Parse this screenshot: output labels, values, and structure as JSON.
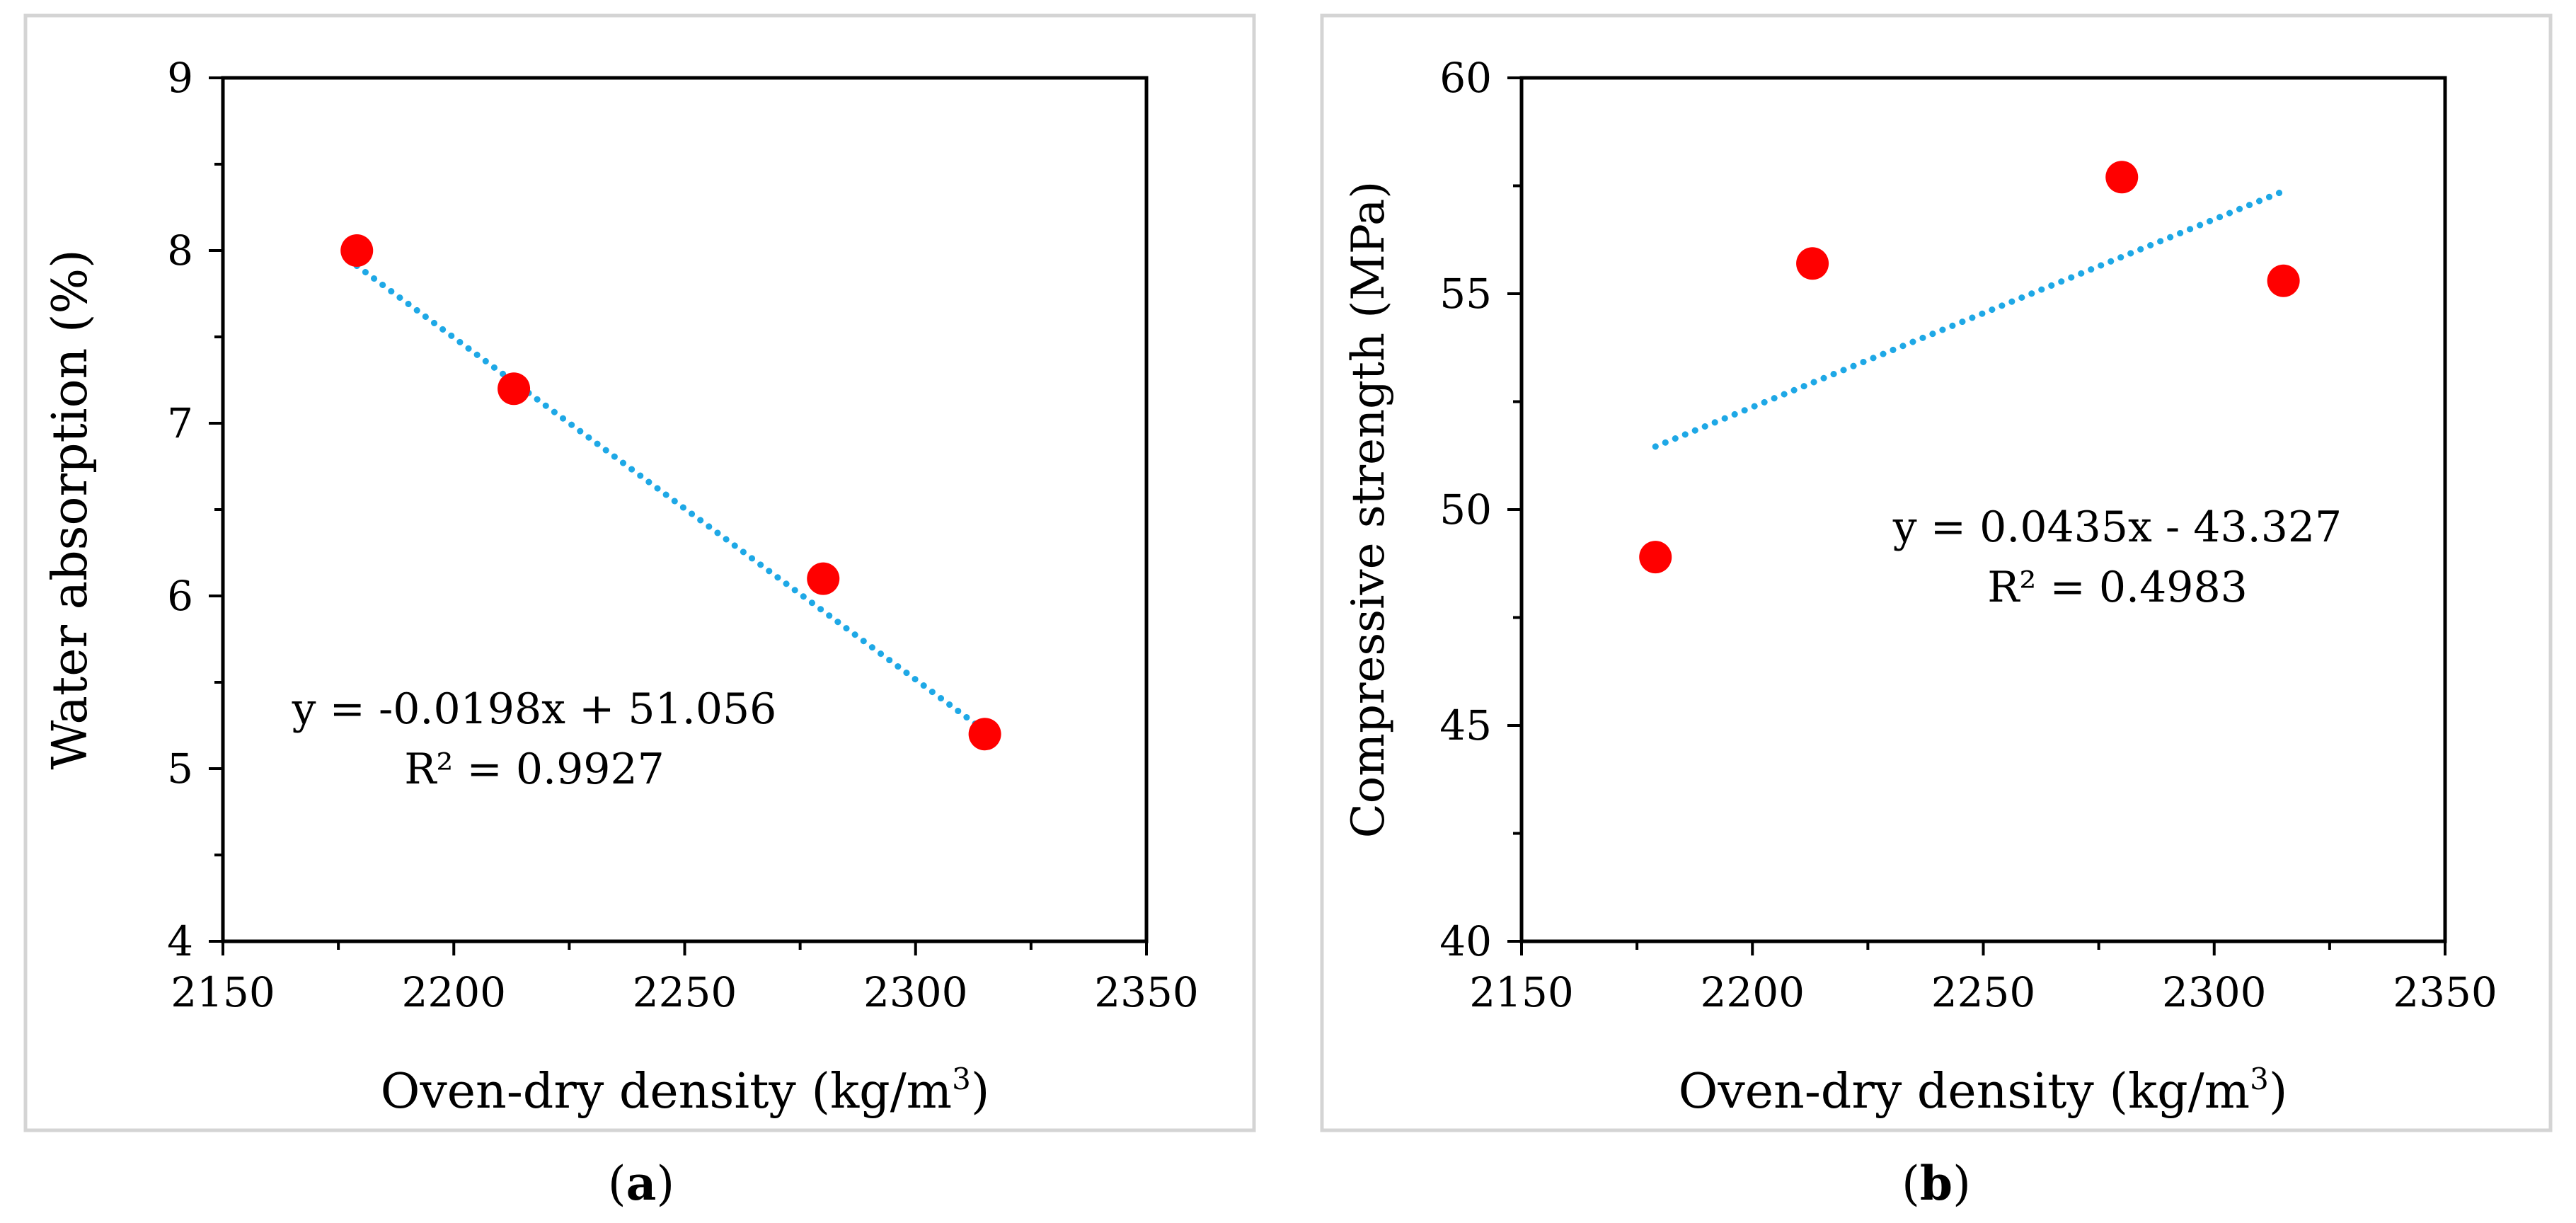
{
  "chart_data": [
    {
      "type": "scatter",
      "panel": "a",
      "caption_open": "(",
      "caption_letter": "a",
      "caption_close": ")",
      "xlabel_main": "Oven-dry density (kg/m",
      "xlabel_sup": "3",
      "xlabel_end": ")",
      "ylabel": "Water absorption (%)",
      "xlim": [
        2150,
        2350
      ],
      "ylim": [
        4,
        9
      ],
      "xticks": [
        2150,
        2200,
        2250,
        2300,
        2350
      ],
      "yticks": [
        4,
        5,
        6,
        7,
        8,
        9
      ],
      "x": [
        2179,
        2213,
        2280,
        2315
      ],
      "y": [
        8.0,
        7.2,
        6.1,
        5.2
      ],
      "trendline": {
        "slope": -0.0198,
        "intercept": 51.056,
        "x_range": [
          2179,
          2315
        ]
      },
      "equation": "y = -0.0198x + 51.056",
      "r_squared": "R² = 0.9927",
      "marker_color": "#ff0000",
      "trend_color": "#1ea8e6"
    },
    {
      "type": "scatter",
      "panel": "b",
      "caption_open": "(",
      "caption_letter": "b",
      "caption_close": ")",
      "xlabel_main": "Oven-dry density (kg/m",
      "xlabel_sup": "3",
      "xlabel_end": ")",
      "ylabel": "Compressive strength (MPa)",
      "xlim": [
        2150,
        2350
      ],
      "ylim": [
        40,
        60
      ],
      "xticks": [
        2150,
        2200,
        2250,
        2300,
        2350
      ],
      "yticks": [
        40,
        45,
        50,
        55,
        60
      ],
      "x": [
        2179,
        2213,
        2280,
        2315
      ],
      "y": [
        48.9,
        55.7,
        57.7,
        55.3
      ],
      "trendline": {
        "slope": 0.0435,
        "intercept": -43.327,
        "x_range": [
          2179,
          2315
        ]
      },
      "equation": "y = 0.0435x - 43.327",
      "r_squared": "R² = 0.4983",
      "marker_color": "#ff0000",
      "trend_color": "#1ea8e6"
    }
  ]
}
